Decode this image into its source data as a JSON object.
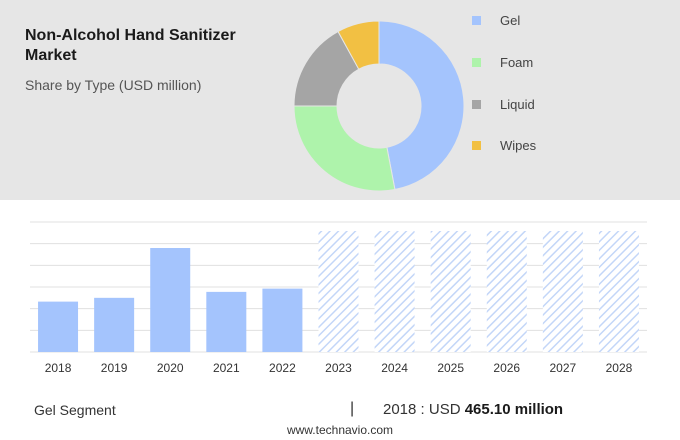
{
  "header": {
    "title": "Non-Alcohol Hand Sanitizer Market",
    "subtitle": "Share by Type (USD million)"
  },
  "footer": {
    "segment": "Gel Segment",
    "separator": "|",
    "year_label": "2018 : USD",
    "value_label": "465.10 million",
    "source": "www.technavio.com"
  },
  "chart_data": [
    {
      "type": "pie",
      "variant": "donut",
      "categories": [
        "Gel",
        "Foam",
        "Liquid",
        "Wipes"
      ],
      "values": [
        47,
        28,
        17,
        8
      ],
      "colors": [
        "#a4c4fd",
        "#aef3ab",
        "#a5a5a5",
        "#f2c043"
      ],
      "legend": "right"
    },
    {
      "type": "bar",
      "categories": [
        "2018",
        "2019",
        "2020",
        "2021",
        "2022",
        "2023",
        "2024",
        "2025",
        "2026",
        "2027",
        "2028"
      ],
      "values": [
        465.1,
        500,
        960,
        555,
        585,
        null,
        null,
        null,
        null,
        null,
        null
      ],
      "forecast_years": [
        "2023",
        "2024",
        "2025",
        "2026",
        "2027",
        "2028"
      ],
      "ylim": [
        0,
        1200
      ],
      "grid": true,
      "colors": {
        "actual": "#a4c4fd",
        "forecast_hatch": "#c3d6f8"
      }
    }
  ]
}
